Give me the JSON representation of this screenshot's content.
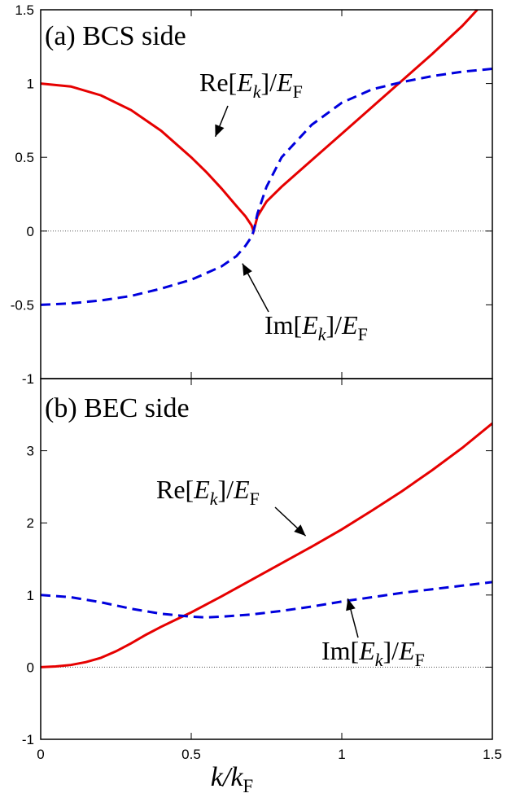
{
  "chart_data": [
    {
      "type": "line",
      "title": "(a) BCS side",
      "xlabel": "k/kF",
      "ylabel": "",
      "xlim": [
        0,
        1.5
      ],
      "ylim": [
        -1,
        1.5
      ],
      "xticks": [
        0,
        0.5,
        1,
        1.5
      ],
      "yticks": [
        -1,
        -0.5,
        0,
        0.5,
        1,
        1.5
      ],
      "ytick_labels": [
        "-1",
        "-0.5",
        "0",
        "0.5",
        "1",
        "1.5"
      ],
      "colors": {
        "re": "#e60000",
        "im": "#0000dd"
      },
      "series": [
        {
          "name": "Re[Ek]/EF",
          "style": "solid",
          "x": [
            0,
            0.1,
            0.2,
            0.3,
            0.4,
            0.5,
            0.55,
            0.6,
            0.65,
            0.68,
            0.7,
            0.707,
            0.72,
            0.75,
            0.8,
            0.9,
            1.0,
            1.1,
            1.2,
            1.3,
            1.4,
            1.45
          ],
          "y": [
            1.0,
            0.98,
            0.92,
            0.82,
            0.68,
            0.5,
            0.4,
            0.29,
            0.17,
            0.1,
            0.04,
            0.0,
            0.1,
            0.2,
            0.3,
            0.48,
            0.66,
            0.84,
            1.02,
            1.2,
            1.39,
            1.5
          ]
        },
        {
          "name": "Im[Ek]/EF",
          "style": "dashed",
          "x": [
            0,
            0.1,
            0.2,
            0.3,
            0.4,
            0.5,
            0.6,
            0.65,
            0.68,
            0.7,
            0.707,
            0.72,
            0.75,
            0.8,
            0.9,
            1.0,
            1.1,
            1.2,
            1.3,
            1.4,
            1.5
          ],
          "y": [
            -0.5,
            -0.49,
            -0.47,
            -0.44,
            -0.39,
            -0.33,
            -0.24,
            -0.17,
            -0.1,
            -0.04,
            0.0,
            0.12,
            0.3,
            0.5,
            0.72,
            0.87,
            0.96,
            1.01,
            1.05,
            1.08,
            1.1
          ]
        }
      ],
      "title_text": "(a) BCS side",
      "annotations": [
        {
          "text_main": "Re[E",
          "sub1": "k",
          "mid": "]/E",
          "sub2": "F",
          "arrow_to": [
            0.58,
            0.64
          ]
        },
        {
          "text_main": "Im[E",
          "sub1": "k",
          "mid": "]/E",
          "sub2": "F",
          "arrow_to": [
            0.67,
            -0.22
          ]
        }
      ]
    },
    {
      "type": "line",
      "title": "(b) BEC side",
      "xlabel": "k/kF",
      "ylabel": "",
      "xlim": [
        0,
        1.5
      ],
      "ylim": [
        -1,
        4
      ],
      "xticks": [
        0,
        0.5,
        1,
        1.5
      ],
      "xtick_labels": [
        "0",
        "0.5",
        "1",
        "1.5"
      ],
      "yticks": [
        -1,
        0,
        1,
        2,
        3
      ],
      "ytick_labels": [
        "-1",
        "0",
        "1",
        "2",
        "3"
      ],
      "colors": {
        "re": "#e60000",
        "im": "#0000dd"
      },
      "series": [
        {
          "name": "Re[Ek]/EF",
          "style": "solid",
          "x": [
            0,
            0.05,
            0.1,
            0.15,
            0.2,
            0.25,
            0.3,
            0.35,
            0.4,
            0.45,
            0.5,
            0.6,
            0.7,
            0.8,
            0.9,
            1.0,
            1.1,
            1.2,
            1.3,
            1.4,
            1.5
          ],
          "y": [
            0.0,
            0.01,
            0.03,
            0.07,
            0.13,
            0.22,
            0.33,
            0.45,
            0.56,
            0.66,
            0.76,
            0.98,
            1.21,
            1.44,
            1.67,
            1.91,
            2.17,
            2.44,
            2.73,
            3.04,
            3.38
          ]
        },
        {
          "name": "Im[Ek]/EF",
          "style": "dashed",
          "x": [
            0,
            0.1,
            0.2,
            0.3,
            0.4,
            0.5,
            0.55,
            0.6,
            0.7,
            0.8,
            0.9,
            1.0,
            1.1,
            1.2,
            1.3,
            1.4,
            1.5
          ],
          "y": [
            1.0,
            0.97,
            0.9,
            0.81,
            0.74,
            0.7,
            0.69,
            0.7,
            0.73,
            0.78,
            0.84,
            0.91,
            0.97,
            1.03,
            1.08,
            1.13,
            1.18
          ]
        }
      ],
      "annotations": [
        {
          "text_main": "Re[E",
          "sub1": "k",
          "mid": "]/E",
          "sub2": "F",
          "arrow_to": [
            0.88,
            1.82
          ]
        },
        {
          "text_main": "Im[E",
          "sub1": "k",
          "mid": "]/E",
          "sub2": "F",
          "arrow_to": [
            1.02,
            0.95
          ]
        }
      ]
    }
  ],
  "shared_xlabel": {
    "main": "k/k",
    "sub": "F"
  }
}
